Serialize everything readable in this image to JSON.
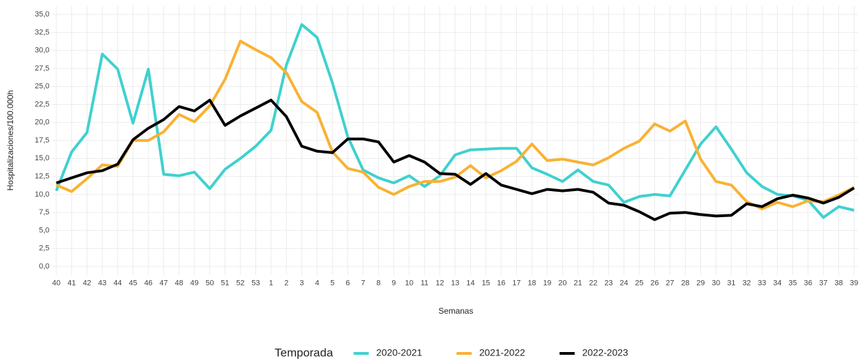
{
  "chart_data": {
    "type": "line",
    "x_label": "Semanas",
    "y_label": "Hospitalizaciones/100.000h",
    "legend_title": "Temporada",
    "legend_position": "bottom",
    "grid": true,
    "categories": [
      "40",
      "41",
      "42",
      "43",
      "44",
      "45",
      "46",
      "47",
      "48",
      "49",
      "50",
      "51",
      "52",
      "53",
      "1",
      "2",
      "3",
      "4",
      "5",
      "6",
      "7",
      "8",
      "9",
      "10",
      "11",
      "12",
      "13",
      "14",
      "15",
      "16",
      "17",
      "18",
      "19",
      "20",
      "21",
      "22",
      "23",
      "24",
      "25",
      "26",
      "27",
      "28",
      "29",
      "30",
      "31",
      "32",
      "33",
      "34",
      "35",
      "36",
      "37",
      "38",
      "39"
    ],
    "ylim": [
      -1.2,
      36.2
    ],
    "yticks": [
      {
        "value": 0,
        "label": "0,0"
      },
      {
        "value": 2.5,
        "label": "2,5"
      },
      {
        "value": 5,
        "label": "5,0"
      },
      {
        "value": 7.5,
        "label": "7,5"
      },
      {
        "value": 10,
        "label": "10,0"
      },
      {
        "value": 12.5,
        "label": "12,5"
      },
      {
        "value": 15,
        "label": "15,0"
      },
      {
        "value": 17.5,
        "label": "17,5"
      },
      {
        "value": 20,
        "label": "20,0"
      },
      {
        "value": 22.5,
        "label": "22,5"
      },
      {
        "value": 25,
        "label": "25,0"
      },
      {
        "value": 27.5,
        "label": "27,5"
      },
      {
        "value": 30,
        "label": "30,0"
      },
      {
        "value": 32.5,
        "label": "32,5"
      },
      {
        "value": 35,
        "label": "35,0"
      }
    ],
    "series": [
      {
        "name": "2020-2021",
        "color": "#3fd1cf",
        "values": [
          10.5,
          15.9,
          18.6,
          29.5,
          27.4,
          19.9,
          27.4,
          12.8,
          12.6,
          13.1,
          10.8,
          13.5,
          15.0,
          16.7,
          18.9,
          28.0,
          33.6,
          31.8,
          25.5,
          18.0,
          13.4,
          12.3,
          11.6,
          12.6,
          11.1,
          12.6,
          15.5,
          16.2,
          16.3,
          16.4,
          16.4,
          13.7,
          12.8,
          11.8,
          13.4,
          11.8,
          11.3,
          8.9,
          9.7,
          10.0,
          9.8,
          13.4,
          17.0,
          19.4,
          16.3,
          13.0,
          11.1,
          10.0,
          9.8,
          9.2,
          6.8,
          8.3,
          7.8
        ]
      },
      {
        "name": "2021-2022",
        "color": "#f9b233",
        "values": [
          11.3,
          10.4,
          12.2,
          14.1,
          13.9,
          17.5,
          17.5,
          18.7,
          21.1,
          20.1,
          22.3,
          26.0,
          31.3,
          30.1,
          29.0,
          26.9,
          22.9,
          21.4,
          15.9,
          13.6,
          13.1,
          11.0,
          10.0,
          11.1,
          11.8,
          11.8,
          12.4,
          14.0,
          12.3,
          13.3,
          14.6,
          17.0,
          14.7,
          14.9,
          14.5,
          14.1,
          15.1,
          16.4,
          17.4,
          19.8,
          18.8,
          20.2,
          14.9,
          11.8,
          11.3,
          9.0,
          8.0,
          8.9,
          8.3,
          9.1,
          9.0,
          9.9,
          11.0
        ]
      },
      {
        "name": "2022-2023",
        "color": "#000000",
        "values": [
          11.6,
          12.3,
          13.0,
          13.3,
          14.2,
          17.6,
          19.2,
          20.4,
          22.2,
          21.6,
          23.1,
          19.6,
          20.9,
          22.0,
          23.1,
          20.8,
          16.7,
          16.0,
          15.8,
          17.7,
          17.7,
          17.3,
          14.5,
          15.4,
          14.5,
          12.9,
          12.8,
          11.4,
          12.9,
          11.3,
          10.7,
          10.1,
          10.7,
          10.5,
          10.7,
          10.3,
          8.8,
          8.5,
          7.6,
          6.5,
          7.4,
          7.5,
          7.2,
          7.0,
          7.1,
          8.7,
          8.3,
          9.4,
          9.9,
          9.5,
          8.8,
          9.6,
          10.9
        ]
      }
    ]
  }
}
